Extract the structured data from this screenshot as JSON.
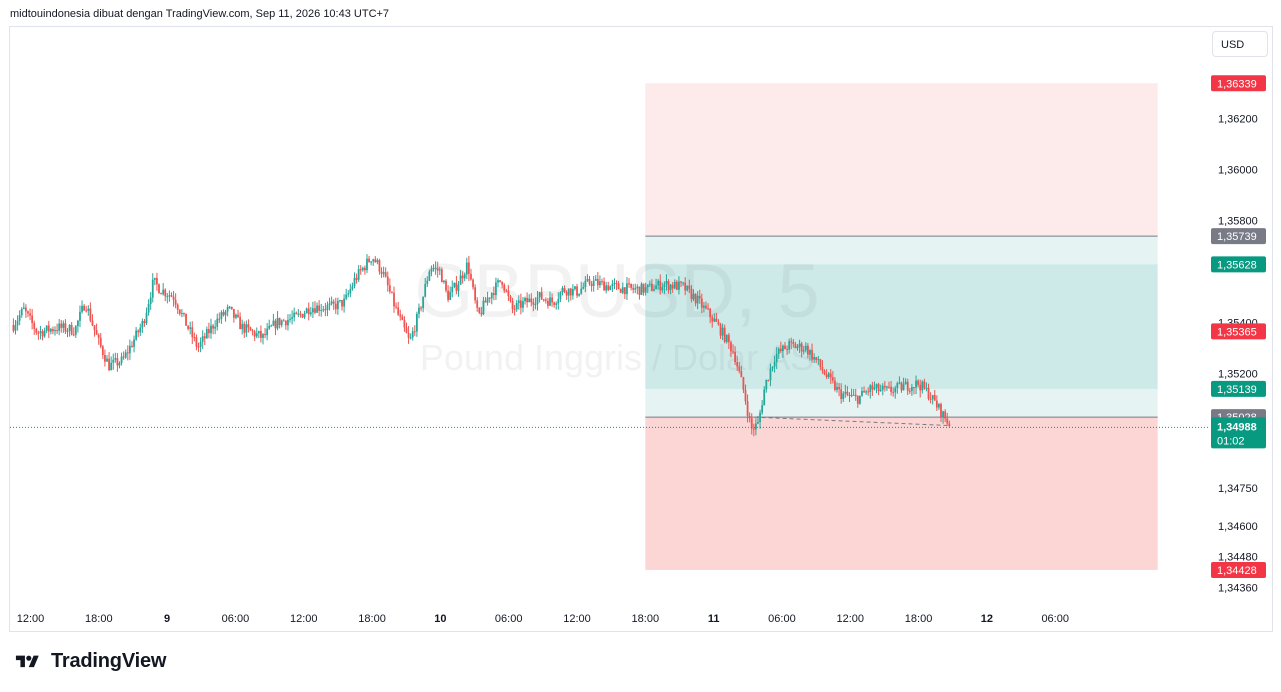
{
  "header": {
    "attribution": "midtouindonesia dibuat dengan TradingView.com, Sep 11, 2026 10:43 UTC+7"
  },
  "currency_button": {
    "label": "USD"
  },
  "footer": {
    "brand": "TradingView"
  },
  "colors": {
    "up": "#26a69a",
    "down": "#ef5350",
    "profit_zone": "#26a69a",
    "loss_zone": "#ef5350",
    "tag_red": "#f23645",
    "tag_green": "#089981",
    "tag_gray": "#787b86"
  },
  "chart_data": {
    "type": "candlestick",
    "symbol_watermark": "GBPUSD, 5",
    "watermark_subtitle": "Pound Inggris / Dolar AS",
    "x_tick_labels": [
      "12:00",
      "18:00",
      "9",
      "06:00",
      "12:00",
      "18:00",
      "10",
      "06:00",
      "12:00",
      "18:00",
      "11",
      "06:00",
      "12:00",
      "18:00",
      "12",
      "06:00"
    ],
    "y_tick_labels": [
      "1,36200",
      "1,36000",
      "1,35800",
      "1,35400",
      "1,35200",
      "1,34750",
      "1,34600",
      "1,34480",
      "1,34360"
    ],
    "y_tick_values": [
      1.362,
      1.36,
      1.358,
      1.354,
      1.352,
      1.3475,
      1.346,
      1.3448,
      1.3436
    ],
    "price_tags": [
      {
        "label": "1,36339",
        "value": 1.36339,
        "color": "red"
      },
      {
        "label": "1,35739",
        "value": 1.35739,
        "color": "gray"
      },
      {
        "label": "1,35628",
        "value": 1.35628,
        "color": "green"
      },
      {
        "label": "1,35365",
        "value": 1.35365,
        "color": "red"
      },
      {
        "label": "1,35139",
        "value": 1.35139,
        "color": "green"
      },
      {
        "label": "1,35028",
        "value": 1.35028,
        "color": "gray"
      },
      {
        "label": "1,34428",
        "value": 1.34428,
        "color": "red"
      }
    ],
    "last_price": {
      "label": "1,34988",
      "countdown": "01:02",
      "value": 1.34988
    },
    "positions": [
      {
        "type": "short",
        "entry": 1.35739,
        "stop": 1.36339,
        "target": 1.35139,
        "start_x": 1.0,
        "end_x": 8.5
      },
      {
        "type": "long",
        "entry": 1.35028,
        "stop": 1.34428,
        "target": 1.35628,
        "start_x": 1.0,
        "end_x": 8.5
      }
    ],
    "price_path": [
      [
        -8.25,
        1.3539
      ],
      [
        -8.1,
        1.3545
      ],
      [
        -7.9,
        1.3536
      ],
      [
        -7.6,
        1.3538
      ],
      [
        -7.35,
        1.3537
      ],
      [
        -7.2,
        1.3548
      ],
      [
        -7.0,
        1.3532
      ],
      [
        -6.85,
        1.3523
      ],
      [
        -6.65,
        1.3525
      ],
      [
        -6.55,
        1.353
      ],
      [
        -6.35,
        1.354
      ],
      [
        -6.2,
        1.3556
      ],
      [
        -6.1,
        1.3553
      ],
      [
        -5.9,
        1.355
      ],
      [
        -5.75,
        1.3541
      ],
      [
        -5.55,
        1.353
      ],
      [
        -5.3,
        1.354
      ],
      [
        -5.1,
        1.3545
      ],
      [
        -4.9,
        1.3538
      ],
      [
        -4.6,
        1.3534
      ],
      [
        -4.4,
        1.354
      ],
      [
        -4.1,
        1.3542
      ],
      [
        -3.9,
        1.3546
      ],
      [
        -3.6,
        1.3546
      ],
      [
        -3.4,
        1.3548
      ],
      [
        -3.25,
        1.3557
      ],
      [
        -3.0,
        1.3566
      ],
      [
        -2.85,
        1.356
      ],
      [
        -2.65,
        1.3545
      ],
      [
        -2.45,
        1.3532
      ],
      [
        -2.3,
        1.3545
      ],
      [
        -2.15,
        1.3562
      ],
      [
        -2.0,
        1.356
      ],
      [
        -1.9,
        1.355
      ],
      [
        -1.75,
        1.3555
      ],
      [
        -1.6,
        1.3563
      ],
      [
        -1.45,
        1.3542
      ],
      [
        -1.3,
        1.355
      ],
      [
        -1.1,
        1.3557
      ],
      [
        -0.95,
        1.3545
      ],
      [
        -0.75,
        1.3548
      ],
      [
        -0.55,
        1.355
      ],
      [
        -0.35,
        1.3548
      ],
      [
        -0.2,
        1.3553
      ],
      [
        0.0,
        1.3552
      ],
      [
        0.2,
        1.3556
      ],
      [
        0.5,
        1.3554
      ],
      [
        0.8,
        1.3553
      ],
      [
        1.0,
        1.3553
      ],
      [
        1.25,
        1.3555
      ],
      [
        1.55,
        1.3554
      ],
      [
        1.75,
        1.3549
      ],
      [
        2.0,
        1.3541
      ],
      [
        2.15,
        1.3535
      ],
      [
        2.3,
        1.3528
      ],
      [
        2.45,
        1.3512
      ],
      [
        2.55,
        1.3498
      ],
      [
        2.65,
        1.35
      ],
      [
        2.75,
        1.3515
      ],
      [
        2.9,
        1.3527
      ],
      [
        3.1,
        1.3531
      ],
      [
        3.35,
        1.353
      ],
      [
        3.5,
        1.3525
      ],
      [
        3.65,
        1.3519
      ],
      [
        3.85,
        1.3512
      ],
      [
        4.1,
        1.351
      ],
      [
        4.3,
        1.3514
      ],
      [
        4.55,
        1.3513
      ],
      [
        4.8,
        1.3515
      ],
      [
        5.0,
        1.3516
      ],
      [
        5.15,
        1.3512
      ],
      [
        5.3,
        1.3506
      ],
      [
        5.45,
        1.35
      ]
    ],
    "price_range": [
      1.3431,
      1.3656
    ],
    "x_range": [
      -8.3,
      8.9
    ],
    "grid": false,
    "legend": "none"
  }
}
